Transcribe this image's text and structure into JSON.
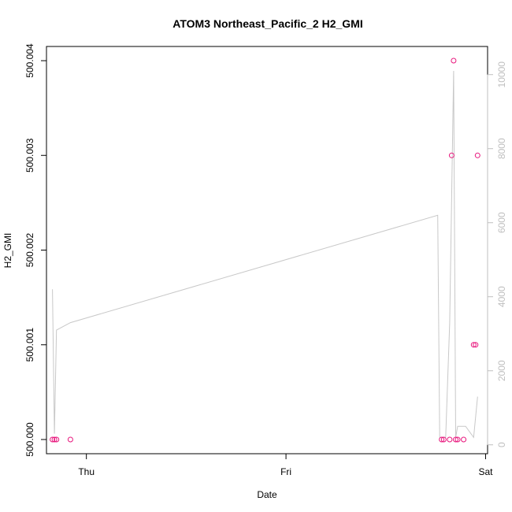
{
  "chart_data": {
    "type": "scatter",
    "title": "ATOM3 Northeast_Pacific_2 H2_GMI",
    "xlabel": "Date",
    "ylabel": "H2_GMI",
    "x_ticks": [
      "Thu",
      "Fri",
      "Sat"
    ],
    "x_tick_values": [
      1.0,
      2.0,
      3.0
    ],
    "xlim": [
      0.8,
      3.01
    ],
    "y_ticks": [
      "500.000",
      "500.001",
      "500.002",
      "500.003",
      "500.004"
    ],
    "y_tick_values": [
      500.0,
      500.001,
      500.002,
      500.003,
      500.004
    ],
    "ylim": [
      499.99985,
      500.00415
    ],
    "y2_ticks": [
      "0",
      "2000",
      "4000",
      "6000",
      "8000",
      "10000"
    ],
    "y2_tick_values": [
      0,
      2000,
      4000,
      6000,
      8000,
      10000
    ],
    "y2lim": [
      -240,
      10760
    ],
    "colors": {
      "points": "#e8177d",
      "line": "#c8c8c8",
      "right_axis": "#bfbfbf"
    },
    "series": [
      {
        "type": "scatter",
        "points": [
          {
            "x": 0.83,
            "y": 500.0
          },
          {
            "x": 0.84,
            "y": 500.0
          },
          {
            "x": 0.85,
            "y": 500.0
          },
          {
            "x": 0.92,
            "y": 500.0
          },
          {
            "x": 2.78,
            "y": 500.0
          },
          {
            "x": 2.79,
            "y": 500.0
          },
          {
            "x": 2.82,
            "y": 500.0
          },
          {
            "x": 2.83,
            "y": 500.003
          },
          {
            "x": 2.84,
            "y": 500.004
          },
          {
            "x": 2.85,
            "y": 500.0
          },
          {
            "x": 2.86,
            "y": 500.0
          },
          {
            "x": 2.89,
            "y": 500.0
          },
          {
            "x": 2.94,
            "y": 500.001
          },
          {
            "x": 2.95,
            "y": 500.001
          },
          {
            "x": 2.96,
            "y": 500.003
          }
        ]
      },
      {
        "type": "line",
        "axis": "right",
        "points": [
          {
            "x": 0.83,
            "y": 4200
          },
          {
            "x": 0.84,
            "y": 300
          },
          {
            "x": 0.85,
            "y": 3100
          },
          {
            "x": 0.92,
            "y": 3300
          },
          {
            "x": 2.76,
            "y": 6200
          },
          {
            "x": 2.77,
            "y": 200
          },
          {
            "x": 2.8,
            "y": 200
          },
          {
            "x": 2.82,
            "y": 3300
          },
          {
            "x": 2.84,
            "y": 10100
          },
          {
            "x": 2.85,
            "y": 200
          },
          {
            "x": 2.86,
            "y": 500
          },
          {
            "x": 2.9,
            "y": 500
          },
          {
            "x": 2.94,
            "y": 200
          },
          {
            "x": 2.96,
            "y": 1300
          }
        ]
      }
    ]
  }
}
